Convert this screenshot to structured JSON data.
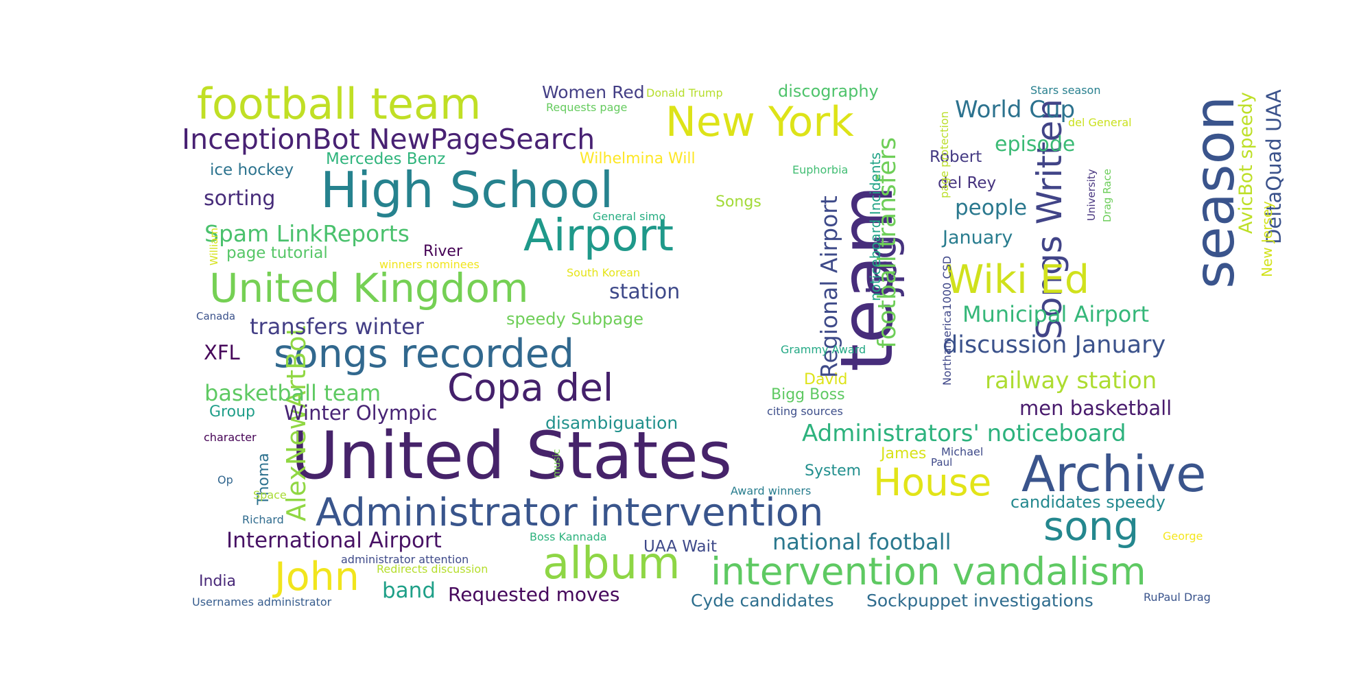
{
  "words": [
    {
      "text": "United States",
      "color": "#46236a"
    },
    {
      "text": "football team",
      "color": "#c0df25"
    },
    {
      "text": "High School",
      "color": "#26828e"
    },
    {
      "text": "team",
      "color": "#472d7b"
    },
    {
      "text": "season",
      "color": "#3a548c"
    },
    {
      "text": "Archive",
      "color": "#3a548c"
    },
    {
      "text": "Airport",
      "color": "#1f998a"
    },
    {
      "text": "New York",
      "color": "#dde318"
    },
    {
      "text": "United Kingdom",
      "color": "#75d054"
    },
    {
      "text": "Administrator intervention",
      "color": "#39558c"
    },
    {
      "text": "intervention vandalism",
      "color": "#5ec962"
    },
    {
      "text": "album",
      "color": "#8ed645"
    },
    {
      "text": "Copa del",
      "color": "#44206b"
    },
    {
      "text": "songs recorded",
      "color": "#31688e"
    },
    {
      "text": "Songs Written",
      "color": "#414487"
    },
    {
      "text": "jpg",
      "color": "#46327e"
    },
    {
      "text": "Wiki Ed",
      "color": "#d0e11c"
    },
    {
      "text": "song",
      "color": "#24878e"
    },
    {
      "text": "House",
      "color": "#e2e418"
    },
    {
      "text": "John",
      "color": "#f1e51d"
    },
    {
      "text": "InceptionBot NewPageSearch",
      "color": "#482173"
    },
    {
      "text": "AlexNewArtBot",
      "color": "#90d743"
    },
    {
      "text": "football transfers",
      "color": "#6ece58"
    },
    {
      "text": "Regional Airport",
      "color": "#3e4a89"
    },
    {
      "text": "Spam LinkReports",
      "color": "#4ac16d"
    },
    {
      "text": "World Cup",
      "color": "#2c728e"
    },
    {
      "text": "Administrators' noticeboard",
      "color": "#2db27d"
    },
    {
      "text": "discussion January",
      "color": "#3b528b"
    },
    {
      "text": "railway station",
      "color": "#addc30"
    },
    {
      "text": "Municipal Airport",
      "color": "#35b779"
    },
    {
      "text": "national football",
      "color": "#2a788e"
    },
    {
      "text": "basketball team",
      "color": "#5ec962"
    },
    {
      "text": "transfers winter",
      "color": "#433e85"
    },
    {
      "text": "men basketball",
      "color": "#481a6c"
    },
    {
      "text": "Winter Olympic",
      "color": "#482475"
    },
    {
      "text": "International Airport",
      "color": "#471164"
    },
    {
      "text": "people",
      "color": "#2a788e"
    },
    {
      "text": "episode",
      "color": "#3bbb75"
    },
    {
      "text": "station",
      "color": "#3e4989"
    },
    {
      "text": "DeltaQuad UAA",
      "color": "#3b528b"
    },
    {
      "text": "AvicBot speedy",
      "color": "#bddf26"
    },
    {
      "text": "sorting",
      "color": "#472c7a"
    },
    {
      "text": "discography",
      "color": "#4ec36b"
    },
    {
      "text": "Women Red",
      "color": "#433e85"
    },
    {
      "text": "Requested moves",
      "color": "#46085c"
    },
    {
      "text": "Cyde candidates",
      "color": "#2e6f8e"
    },
    {
      "text": "Sockpuppet investigations",
      "color": "#2f6c8e"
    },
    {
      "text": "band",
      "color": "#1fa088"
    },
    {
      "text": "XFL",
      "color": "#46075a"
    },
    {
      "text": "disambiguation",
      "color": "#21918c"
    },
    {
      "text": "candidates speedy",
      "color": "#23888e"
    },
    {
      "text": "January",
      "color": "#287c8e"
    },
    {
      "text": "ice hockey",
      "color": "#2c738e"
    },
    {
      "text": "Mercedes Benz",
      "color": "#2fb47c"
    },
    {
      "text": "Wilhelmina Will",
      "color": "#fde725"
    },
    {
      "text": "noticeboard Incidents",
      "color": "#20a386"
    },
    {
      "text": "Songs",
      "color": "#a2da37"
    },
    {
      "text": "page tutorial",
      "color": "#56c667"
    },
    {
      "text": "speedy Subpage",
      "color": "#6ece58"
    },
    {
      "text": "UAA Wait",
      "color": "#3e4989"
    },
    {
      "text": "Robert",
      "color": "#443a83"
    },
    {
      "text": "del Rey",
      "color": "#46337e"
    },
    {
      "text": "Bigg Boss",
      "color": "#5ec962"
    },
    {
      "text": "David",
      "color": "#dde318"
    },
    {
      "text": "Group",
      "color": "#1f9e89"
    },
    {
      "text": "India",
      "color": "#482878"
    },
    {
      "text": "System",
      "color": "#218f8d"
    },
    {
      "text": "James",
      "color": "#d8e219"
    },
    {
      "text": "Thoma",
      "color": "#2d718e"
    },
    {
      "text": "New Jersey",
      "color": "#d2e21b"
    },
    {
      "text": "River",
      "color": "#440154"
    },
    {
      "text": "Euphorbia",
      "color": "#40bd72"
    },
    {
      "text": "Donald Trump",
      "color": "#b5de2b"
    },
    {
      "text": "Requests page",
      "color": "#65cb5e"
    },
    {
      "text": "Stars season",
      "color": "#277f8e"
    },
    {
      "text": "del General",
      "color": "#cae11f"
    },
    {
      "text": "page protection",
      "color": "#bade28"
    },
    {
      "text": "Northamerica1000 CSD",
      "color": "#3f4788"
    },
    {
      "text": "University",
      "color": "#46337e"
    },
    {
      "text": "Drag Race",
      "color": "#6ccd5a"
    },
    {
      "text": "General simo",
      "color": "#26ad81"
    },
    {
      "text": "winners nominees",
      "color": "#f1e51d"
    },
    {
      "text": "South Korean",
      "color": "#e5e419"
    },
    {
      "text": "William",
      "color": "#d5e21a"
    },
    {
      "text": "Canada",
      "color": "#3b528b"
    },
    {
      "text": "Grammy Award",
      "color": "#22a884"
    },
    {
      "text": "citing sources",
      "color": "#3d4e8a"
    },
    {
      "text": "character",
      "color": "#440154"
    },
    {
      "text": "Op",
      "color": "#31668e"
    },
    {
      "text": "Space",
      "color": "#a8db34"
    },
    {
      "text": "Richard",
      "color": "#2f6b8e"
    },
    {
      "text": "music",
      "color": "#7ad151"
    },
    {
      "text": "Paul",
      "color": "#3e4989"
    },
    {
      "text": "Michael",
      "color": "#3e4a89"
    },
    {
      "text": "Award winners",
      "color": "#287d8e"
    },
    {
      "text": "Boss Kannada",
      "color": "#2db27d"
    },
    {
      "text": "George",
      "color": "#f4e61e"
    },
    {
      "text": "administrator attention",
      "color": "#3e4a89"
    },
    {
      "text": "Redirects discussion",
      "color": "#b5de2b"
    },
    {
      "text": "Usernames administrator",
      "color": "#365c8d"
    },
    {
      "text": "RuPaul Drag",
      "color": "#3a548c"
    }
  ]
}
